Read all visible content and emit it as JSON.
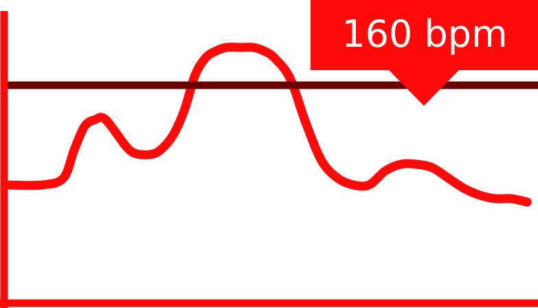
{
  "chart_data": {
    "type": "line",
    "callout_label": "160 bpm",
    "threshold": 160,
    "y_range": [
      100,
      180
    ],
    "x_range": [
      0,
      100
    ],
    "series": [
      {
        "x": [
          0,
          7,
          11,
          13,
          15,
          17,
          19,
          23,
          25,
          28,
          30,
          32,
          34,
          36,
          38,
          40,
          42,
          45,
          47,
          49,
          51,
          54,
          57,
          60,
          63,
          66,
          69,
          72,
          75,
          78,
          81,
          84,
          87,
          90,
          93,
          96,
          99
        ],
        "y": [
          131,
          131,
          133,
          141,
          148,
          150,
          150,
          142,
          140,
          140,
          142,
          146,
          153,
          163,
          168,
          170,
          171,
          171,
          171,
          170,
          168,
          162,
          149,
          138,
          133,
          131,
          131,
          135,
          137,
          137,
          136,
          133,
          130,
          128,
          127,
          127,
          126
        ]
      }
    ],
    "colors": {
      "line": "#ff0a0a",
      "axis": "#ff0a0a",
      "threshold": "#6b0000",
      "callout_bg": "#ff0a0a",
      "callout_text": "#ffffff"
    }
  }
}
